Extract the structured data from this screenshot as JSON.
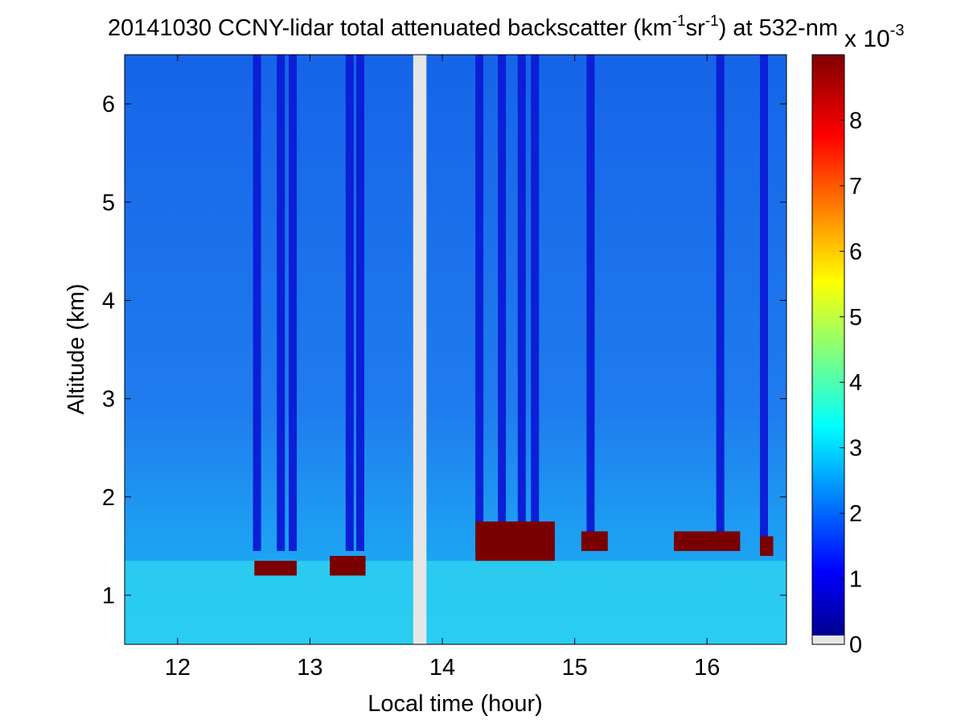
{
  "chart_data": {
    "type": "heatmap",
    "title_main": "20141030 CCNY-lidar total attenuated backscatter (km",
    "title_exp1": "-1",
    "title_mid": "sr",
    "title_exp2": "-1",
    "title_end": ") at 532-nm",
    "xlabel": "Local time (hour)",
    "ylabel": "Altitude (km)",
    "xlim": [
      11.6,
      16.6
    ],
    "ylim": [
      0.5,
      6.5
    ],
    "xticks": [
      "12",
      "13",
      "14",
      "15",
      "16"
    ],
    "yticks": [
      "1",
      "2",
      "3",
      "4",
      "5",
      "6"
    ],
    "colorbar": {
      "ticks": [
        "0",
        "1",
        "2",
        "3",
        "4",
        "5",
        "6",
        "7",
        "8"
      ],
      "multiplier_base": "x 10",
      "multiplier_exp": "-3",
      "range": [
        0,
        9
      ],
      "colormap": "jet"
    },
    "data_gap": [
      13.78,
      13.88
    ],
    "cloud_base_segments": [
      {
        "x": [
          12.58,
          12.9
        ],
        "base_km": 1.2,
        "top_km": 1.35
      },
      {
        "x": [
          13.15,
          13.42
        ],
        "base_km": 1.2,
        "top_km": 1.4
      },
      {
        "x": [
          14.25,
          14.85
        ],
        "base_km": 1.35,
        "top_km": 1.75
      },
      {
        "x": [
          15.05,
          15.25
        ],
        "base_km": 1.45,
        "top_km": 1.65
      },
      {
        "x": [
          15.75,
          16.25
        ],
        "base_km": 1.45,
        "top_km": 1.65
      },
      {
        "x": [
          16.4,
          16.5
        ],
        "base_km": 1.4,
        "top_km": 1.6
      }
    ],
    "saturated_columns": [
      12.6,
      12.78,
      12.87,
      13.3,
      13.38,
      14.28,
      14.45,
      14.6,
      14.7,
      15.12,
      16.1,
      16.43
    ]
  }
}
